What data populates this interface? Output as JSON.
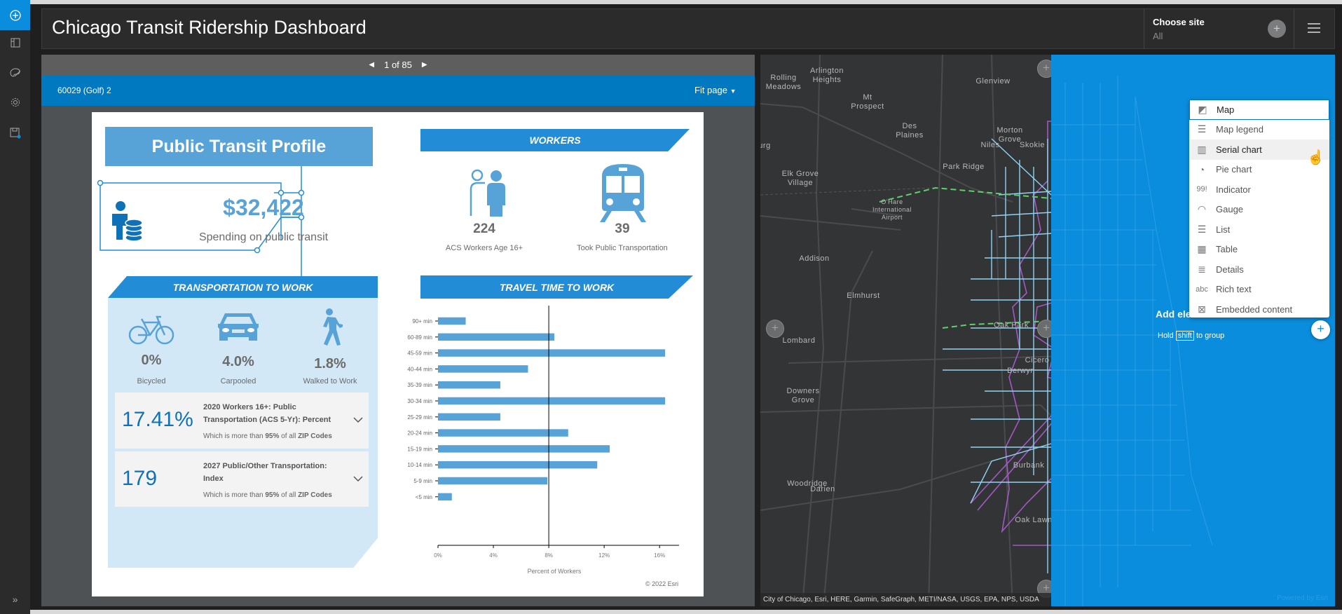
{
  "header": {
    "title": "Chicago Transit Ridership Dashboard",
    "selector_label": "Choose site",
    "selector_value": "All"
  },
  "sidebar": {
    "items": [
      {
        "name": "add-element",
        "icon": "plus-circle-icon",
        "active": true
      },
      {
        "name": "layout",
        "icon": "layout-icon"
      },
      {
        "name": "theme",
        "icon": "palette-icon"
      },
      {
        "name": "settings",
        "icon": "gear-icon"
      },
      {
        "name": "save",
        "icon": "save-icon"
      }
    ],
    "collapse": "»"
  },
  "report": {
    "pager": "1 of 85",
    "feature": "60029 (Golf) 2",
    "fit": "Fit page"
  },
  "profile": {
    "title": "Public Transit Profile",
    "spending_value": "$32,422",
    "spending_label": "Spending on public transit",
    "workers_header": "WORKERS",
    "workers": [
      {
        "value": "224",
        "label": "ACS Workers Age 16+"
      },
      {
        "value": "39",
        "label": "Took Public Transportation"
      }
    ],
    "transport_header": "TRANSPORTATION TO WORK",
    "modes": [
      {
        "value": "0%",
        "label": "Bicycled"
      },
      {
        "value": "4.0%",
        "label": "Carpooled"
      },
      {
        "value": "1.8%",
        "label": "Walked to Work"
      }
    ],
    "cards": [
      {
        "value": "17.41%",
        "title": "2020 Workers 16+: Public Transportation (ACS 5-Yr): Percent",
        "note_pre": "Which is more than ",
        "note_bold": "95% ",
        "note_mid": "of all ",
        "note_bold2": "ZIP Codes"
      },
      {
        "value": "179",
        "title": "2027 Public/Other Transportation: Index",
        "note_pre": "Which is more than ",
        "note_bold": "95% ",
        "note_mid": "of all ",
        "note_bold2": "ZIP Codes"
      }
    ],
    "travel_header": "TRAVEL TIME TO WORK",
    "copyright": "© 2022 Esri"
  },
  "chart_data": {
    "type": "bar",
    "orientation": "horizontal",
    "categories": [
      "90+ min",
      "60-89 min",
      "45-59 min",
      "40-44 min",
      "35-39 min",
      "30-34 min",
      "25-29 min",
      "20-24 min",
      "15-19 min",
      "10-14 min",
      "5-9 min",
      "<5 min"
    ],
    "values": [
      2.0,
      8.4,
      16.4,
      6.5,
      4.5,
      16.4,
      4.5,
      9.4,
      12.4,
      11.5,
      7.9,
      1.0
    ],
    "xlabel": "Percent of Workers",
    "xlim": [
      0,
      16.8
    ],
    "xticks": [
      "0%",
      "4%",
      "8%",
      "12%",
      "16%"
    ],
    "reference_line": 8,
    "color": "#57a3d8"
  },
  "map": {
    "labels": [
      {
        "t": "Rolling\nMeadows"
      },
      {
        "t": "Arlington\nHeights"
      },
      {
        "t": "Glenview"
      },
      {
        "t": "Mt\nProspect"
      },
      {
        "t": "Des\nPlaines"
      },
      {
        "t": "Morton\nGrove"
      },
      {
        "t": "Niles"
      },
      {
        "t": "Skokie"
      },
      {
        "t": "Park Ridge"
      },
      {
        "t": "Elk Grove\nVillage"
      },
      {
        "t": "O'Hare\nInternational\nAirport"
      },
      {
        "t": "Addison"
      },
      {
        "t": "Elmhurst"
      },
      {
        "t": "Lombard"
      },
      {
        "t": "Oak Park"
      },
      {
        "t": "Cicero"
      },
      {
        "t": "Berwyn"
      },
      {
        "t": "Downers\nGrove"
      },
      {
        "t": "Woodridge"
      },
      {
        "t": "Darien"
      },
      {
        "t": "Burbank"
      },
      {
        "t": "Oak Lawn"
      },
      {
        "t": "urg"
      }
    ],
    "attribution": "City of Chicago, Esri, HERE, Garmin, SafeGraph, METI/NASA, USGS, EPA, NPS, USDA",
    "powered": "Powered by Esri"
  },
  "add_element": {
    "label": "Add ele",
    "hint_pre": "Hold",
    "hint_key": "shift",
    "hint_post": "to group",
    "menu": [
      {
        "label": "Map",
        "icon": "map-icon",
        "focused": true
      },
      {
        "label": "Map legend",
        "icon": "map-legend-icon"
      },
      {
        "label": "Serial chart",
        "icon": "serial-chart-icon",
        "hover": true
      },
      {
        "label": "Pie chart",
        "icon": "pie-chart-icon"
      },
      {
        "label": "Indicator",
        "icon": "indicator-icon",
        "glyph": "99!"
      },
      {
        "label": "Gauge",
        "icon": "gauge-icon"
      },
      {
        "label": "List",
        "icon": "list-icon"
      },
      {
        "label": "Table",
        "icon": "table-icon"
      },
      {
        "label": "Details",
        "icon": "details-icon"
      },
      {
        "label": "Rich text",
        "icon": "rich-text-icon",
        "glyph": "abc"
      },
      {
        "label": "Embedded content",
        "icon": "embedded-content-icon"
      }
    ]
  },
  "colors": {
    "accent": "#0079c1",
    "overlay": "#0a8ddc",
    "profile_blue": "#228dd6",
    "map_purple": "#a259c4",
    "map_cyan": "#8fd3f4"
  }
}
